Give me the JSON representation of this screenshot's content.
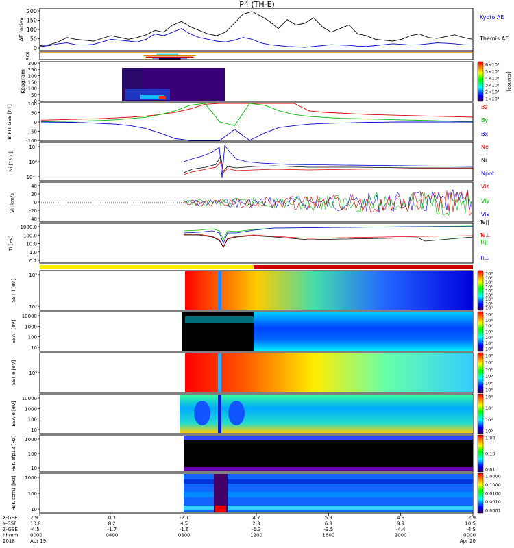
{
  "title": "P4 (TH-E)",
  "colors": {
    "black": "#000000",
    "blue": "#0000cc",
    "red": "#dd0000",
    "green": "#00bb00",
    "orange": "#e08000",
    "yellow": "#ffee00",
    "darkred": "#cc0000"
  },
  "chart_data": [
    {
      "type": "line",
      "panel": "ae",
      "ylabel": "AE Index",
      "ylim": [
        0,
        230
      ],
      "yticks": [
        "0",
        "50",
        "100",
        "150",
        "200"
      ],
      "series": [
        {
          "name": "Kyoto AE",
          "color": "#0000cc",
          "values": [
            20,
            25,
            35,
            40,
            30,
            28,
            32,
            45,
            60,
            55,
            50,
            45,
            60,
            90,
            80,
            100,
            120,
            90,
            70,
            60,
            50,
            45,
            55,
            70,
            60,
            40,
            30,
            25,
            20,
            18,
            15,
            20,
            25,
            30,
            28,
            26,
            22,
            20,
            25,
            30,
            35,
            32,
            28,
            30,
            35,
            40,
            38,
            35,
            30,
            28
          ]
        },
        {
          "name": "Themis AE",
          "color": "#000000",
          "values": [
            25,
            30,
            45,
            70,
            60,
            55,
            50,
            65,
            80,
            70,
            60,
            70,
            85,
            110,
            100,
            140,
            160,
            130,
            110,
            90,
            80,
            100,
            150,
            200,
            215,
            190,
            160,
            120,
            170,
            140,
            150,
            180,
            130,
            100,
            120,
            140,
            90,
            80,
            60,
            55,
            50,
            60,
            80,
            90,
            70,
            65,
            75,
            85,
            70,
            60
          ]
        }
      ],
      "labels": {
        "series1": "Kyoto AE",
        "series2": "Themis AE"
      }
    },
    {
      "type": "bar",
      "panel": "roi",
      "ylabel": "ROI",
      "bars": [
        {
          "color": "#e08000",
          "x": [
            0.0,
            1.0
          ],
          "level": 0.15
        },
        {
          "color": "#00cccc",
          "x": [
            0.27,
            0.32
          ],
          "level": 0.35
        },
        {
          "color": "#e08000",
          "x": [
            0.24,
            0.36
          ],
          "level": 0.55
        },
        {
          "color": "#cc0000",
          "x": [
            0.245,
            0.355
          ],
          "level": 0.7
        },
        {
          "color": "#0000cc",
          "x": [
            0.26,
            0.34
          ],
          "level": 0.82
        },
        {
          "color": "#000000",
          "x": [
            0.275,
            0.325
          ],
          "level": 0.92
        }
      ]
    },
    {
      "type": "heatmap",
      "panel": "keogram",
      "ylabel": "Keogram",
      "ylim": [
        0,
        300
      ],
      "yticks": [
        "0",
        "50",
        "100",
        "150",
        "200",
        "250",
        "300"
      ],
      "x_extent": [
        0.28,
        0.65
      ],
      "colorbar": {
        "ticks": [
          "1×10⁴",
          "2×10⁴",
          "3×10⁴",
          "4×10⁴",
          "5×10⁴",
          "6×10⁴"
        ],
        "unit": "[counts]"
      }
    },
    {
      "type": "line",
      "panel": "bfit",
      "ylabel": "B_FIT GSE [nT]",
      "ylim": [
        -100,
        100
      ],
      "yticks": [
        "-100",
        "-50",
        "0",
        "50",
        "100"
      ],
      "series": [
        {
          "name": "Bz",
          "color": "#dd0000",
          "values": [
            10,
            12,
            14,
            16,
            18,
            22,
            26,
            32,
            40,
            52,
            70,
            95,
            100,
            100,
            100,
            100,
            100,
            100,
            60,
            52,
            48,
            44,
            40,
            38,
            36,
            34,
            32,
            30,
            28,
            26
          ]
        },
        {
          "name": "By",
          "color": "#00bb00",
          "values": [
            2,
            3,
            4,
            6,
            8,
            12,
            18,
            25,
            40,
            60,
            90,
            100,
            0,
            -20,
            100,
            90,
            60,
            40,
            30,
            25,
            20,
            18,
            16,
            14,
            12,
            10,
            8,
            6,
            4,
            2
          ]
        },
        {
          "name": "Bx",
          "color": "#0000cc",
          "values": [
            0,
            -1,
            -2,
            -4,
            -8,
            -12,
            -20,
            -35,
            -60,
            -90,
            -100,
            -100,
            -100,
            -40,
            -100,
            -60,
            -30,
            -20,
            -12,
            -8,
            -6,
            -4,
            -2,
            -1,
            0,
            0,
            0,
            0,
            0,
            0
          ]
        }
      ]
    },
    {
      "type": "line",
      "panel": "ni",
      "ylabel": "Ni [1/cc]",
      "yticks": [
        "10⁻¹",
        "10⁰",
        "10¹"
      ],
      "series": [
        {
          "name": "Ne",
          "color": "#dd0000"
        },
        {
          "name": "Ni",
          "color": "#000000"
        },
        {
          "name": "Npot",
          "color": "#0000cc"
        }
      ]
    },
    {
      "type": "line",
      "panel": "vi",
      "ylabel": "Vi [km/s]",
      "ylim": [
        -50,
        50
      ],
      "yticks": [
        "40",
        "20",
        "0",
        "-20",
        "-40"
      ],
      "series": [
        {
          "name": "Vix",
          "color": "#dd0000"
        },
        {
          "name": "Viy",
          "color": "#00bb00"
        },
        {
          "name": "Viz",
          "color": "#0000cc"
        }
      ]
    },
    {
      "type": "line",
      "panel": "ti",
      "ylabel": "Ti [eV]",
      "yticks": [
        "1000.0",
        "100.0",
        "10.0",
        "1.0",
        "0.1"
      ],
      "series": [
        {
          "name": "Te||",
          "color": "#000000"
        },
        {
          "name": "Te⊥",
          "color": "#dd0000"
        },
        {
          "name": "Ti||",
          "color": "#00bb00"
        },
        {
          "name": "Ti⊥",
          "color": "#0000cc"
        }
      ]
    },
    {
      "type": "heatmap",
      "panel": "sst_i",
      "ylabel": "SST i [eV]",
      "yticks": [
        "10⁵",
        "10⁴"
      ],
      "colorbar": {
        "ticks": [
          "10⁸",
          "10⁷",
          "10⁶",
          "10⁵",
          "10⁴",
          "10³",
          "10²",
          "10¹",
          "10⁰"
        ],
        "unit": "Eflux, EFU"
      }
    },
    {
      "type": "heatmap",
      "panel": "esa_i",
      "ylabel": "ESA i [eV]",
      "yticks": [
        "10000",
        "1000",
        "100",
        "10"
      ],
      "colorbar": {
        "ticks": [
          "10⁹",
          "10⁸",
          "10⁷",
          "10⁶",
          "10⁵",
          "10⁴",
          "10³"
        ],
        "unit": "Eflux, EFU"
      }
    },
    {
      "type": "heatmap",
      "panel": "sst_e",
      "ylabel": "SST e [eV]",
      "yticks": [
        "10⁵"
      ],
      "colorbar": {
        "ticks": [
          "10⁸",
          "10⁷",
          "10⁶",
          "10⁵",
          "10⁴",
          "10³"
        ],
        "unit": "Eflux, EFU"
      }
    },
    {
      "type": "heatmap",
      "panel": "esa_e",
      "ylabel": "ESA e [eV]",
      "yticks": [
        "10000",
        "1000",
        "100",
        "10"
      ],
      "colorbar": {
        "ticks": [
          "10⁸",
          "10⁷",
          "10⁶",
          "10⁵"
        ],
        "unit": "Eflux, EFU"
      }
    },
    {
      "type": "heatmap",
      "panel": "fbk_e",
      "ylabel": "FBK efp12 [Hz]",
      "yticks": [
        "1000",
        "100",
        "10"
      ],
      "colorbar": {
        "ticks": [
          "1.00",
          "0.10",
          "0.01"
        ],
        "unit": "<|mV/m|>"
      }
    },
    {
      "type": "heatmap",
      "panel": "fbk_b",
      "ylabel": "FBK scm1 [Hz]",
      "yticks": [
        "1000",
        "100",
        "10"
      ],
      "colorbar": {
        "ticks": [
          "1.0000",
          "0.1000",
          "0.0100",
          "0.0010",
          "0.0001"
        ],
        "unit": "<|mV/m|>"
      }
    }
  ],
  "xaxis": {
    "row_labels": [
      "X-GSE",
      "Y-GSE",
      "Z-GSE",
      "hhmm",
      "2018"
    ],
    "columns": [
      {
        "x": "2.9",
        "y": "10.8",
        "z": "-4.5",
        "t": "0000",
        "d": "Apr 19"
      },
      {
        "x": "0.3",
        "y": "8.2",
        "z": "-1.7",
        "t": "0400",
        "d": ""
      },
      {
        "x": "-2.1",
        "y": "4.5",
        "z": "-1.6",
        "t": "0800",
        "d": ""
      },
      {
        "x": "4.7",
        "y": "2.3",
        "z": "-1.3",
        "t": "1200",
        "d": ""
      },
      {
        "x": "5.9",
        "y": "6.3",
        "z": "-3.5",
        "t": "1600",
        "d": ""
      },
      {
        "x": "4.9",
        "y": "9.9",
        "z": "-4.4",
        "t": "2000",
        "d": ""
      },
      {
        "x": "2.9",
        "y": "10.5",
        "z": "-4.5",
        "t": "0000",
        "d": "Apr 20"
      }
    ]
  }
}
